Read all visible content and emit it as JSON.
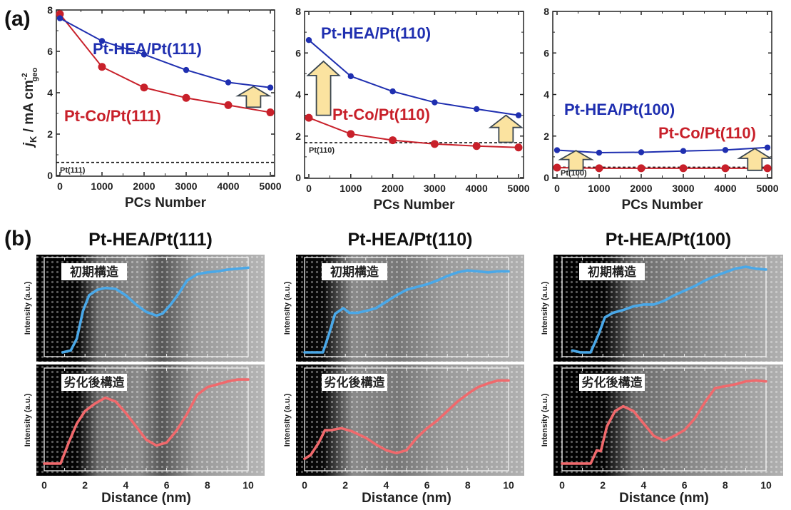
{
  "figure": {
    "panel_a_label": "(a)",
    "panel_b_label": "(b)"
  },
  "colors": {
    "hea": "#1f2fb0",
    "ptco": "#c8202a",
    "arrow_fill": "#fbe3a0",
    "arrow_stroke": "#3a4650",
    "profile_initial": "#4aa8e8",
    "profile_degraded": "#f0696c"
  },
  "chart_data": [
    {
      "type": "line",
      "panel": "a",
      "title": "",
      "xlabel": "PCs Number",
      "ylabel": "j_K / mA cm_geo^-2",
      "ylabel_parts": {
        "j": "j",
        "sub_k": "K",
        "rest": " / mA cm",
        "sup": "-2",
        "sub": "geo"
      },
      "xlim": [
        0,
        5000
      ],
      "ylim": [
        0,
        8
      ],
      "xticks": [
        "0",
        "1000",
        "2000",
        "3000",
        "4000",
        "5000"
      ],
      "yticks": [
        "0",
        "2",
        "4",
        "6",
        "8"
      ],
      "x": [
        0,
        1000,
        2000,
        3000,
        4000,
        5000
      ],
      "series": [
        {
          "name": "Pt-HEA/Pt(111)",
          "color_key": "hea",
          "values": [
            7.6,
            6.5,
            5.85,
            5.1,
            4.5,
            4.25
          ]
        },
        {
          "name": "Pt-Co/Pt(111)",
          "color_key": "ptco",
          "values": [
            7.8,
            5.25,
            4.25,
            3.75,
            3.4,
            3.05
          ]
        }
      ],
      "reference_line": {
        "label": "Pt(111)",
        "value": 0.63
      },
      "arrows": [
        {
          "x": 4600,
          "from": 3.3,
          "to": 4.3
        }
      ]
    },
    {
      "type": "line",
      "panel": "a",
      "title": "",
      "xlabel": "PCs Number",
      "ylabel": "",
      "xlim": [
        0,
        5000
      ],
      "ylim": [
        0,
        8
      ],
      "xticks": [
        "0",
        "1000",
        "2000",
        "3000",
        "4000",
        "5000"
      ],
      "yticks": [
        "0",
        "2",
        "4",
        "6",
        "8"
      ],
      "x": [
        0,
        1000,
        2000,
        3000,
        4000,
        5000
      ],
      "series": [
        {
          "name": "Pt-HEA/Pt(110)",
          "color_key": "hea",
          "values": [
            6.62,
            4.88,
            4.15,
            3.62,
            3.3,
            3.0
          ]
        },
        {
          "name": "Pt-Co/Pt(110)",
          "color_key": "ptco",
          "values": [
            2.88,
            2.1,
            1.8,
            1.62,
            1.52,
            1.45
          ]
        }
      ],
      "reference_line": {
        "label": "Pt(110)",
        "value": 1.68
      },
      "arrows": [
        {
          "x": 350,
          "from": 3.0,
          "to": 5.6
        },
        {
          "x": 4700,
          "from": 1.7,
          "to": 3.0
        }
      ]
    },
    {
      "type": "line",
      "panel": "a",
      "title": "",
      "xlabel": "PCs Number",
      "ylabel": "",
      "xlim": [
        0,
        5000
      ],
      "ylim": [
        0,
        8
      ],
      "xticks": [
        "0",
        "1000",
        "2000",
        "3000",
        "4000",
        "5000"
      ],
      "yticks": [
        "0",
        "2",
        "4",
        "6",
        "8"
      ],
      "x": [
        0,
        1000,
        2000,
        3000,
        4000,
        5000
      ],
      "series": [
        {
          "name": "Pt-HEA/Pt(100)",
          "color_key": "hea",
          "values": [
            1.32,
            1.2,
            1.22,
            1.28,
            1.33,
            1.45
          ]
        },
        {
          "name": "Pt-Co/Pt(110)",
          "color_key": "ptco",
          "values": [
            0.48,
            0.45,
            0.45,
            0.45,
            0.45,
            0.45
          ]
        }
      ],
      "reference_line": {
        "label": "Pt(100)",
        "value": 0.5
      },
      "arrows": [
        {
          "x": 450,
          "from": 0.35,
          "to": 1.3
        },
        {
          "x": 4700,
          "from": 0.35,
          "to": 1.4
        }
      ]
    },
    {
      "type": "line",
      "panel": "b",
      "title": "Pt-HEA/Pt(111)",
      "xlabel": "Distance (nm)",
      "ylabel": "Intensity (a.u.)",
      "xlim": [
        0,
        10
      ],
      "xticks": [
        "0",
        "2",
        "4",
        "6",
        "8",
        "10"
      ],
      "profiles": [
        {
          "name": "初期構造",
          "color_key": "profile_initial",
          "x": [
            0.9,
            1.3,
            1.6,
            1.9,
            2.2,
            2.6,
            3.0,
            3.5,
            4.0,
            4.5,
            5.0,
            5.5,
            5.8,
            6.2,
            6.6,
            7.0,
            7.5,
            8.0,
            8.5,
            9.0,
            9.5,
            10.0
          ],
          "y": [
            0.0,
            0.02,
            0.15,
            0.45,
            0.62,
            0.68,
            0.7,
            0.69,
            0.62,
            0.52,
            0.44,
            0.4,
            0.42,
            0.52,
            0.64,
            0.78,
            0.85,
            0.87,
            0.88,
            0.9,
            0.91,
            0.92
          ]
        },
        {
          "name": "劣化後構造",
          "color_key": "profile_degraded",
          "x": [
            0.0,
            0.8,
            1.2,
            1.6,
            2.0,
            2.5,
            3.0,
            3.5,
            4.0,
            4.5,
            5.0,
            5.5,
            6.0,
            6.5,
            7.0,
            7.5,
            8.0,
            8.5,
            9.0,
            9.5,
            10.0
          ],
          "y": [
            0.03,
            0.03,
            0.25,
            0.45,
            0.58,
            0.66,
            0.72,
            0.68,
            0.56,
            0.42,
            0.28,
            0.22,
            0.25,
            0.38,
            0.55,
            0.75,
            0.83,
            0.86,
            0.89,
            0.91,
            0.91
          ]
        }
      ]
    },
    {
      "type": "line",
      "panel": "b",
      "title": "Pt-HEA/Pt(110)",
      "xlabel": "Distance (nm)",
      "ylabel": "Intensity (a.u.)",
      "xlim": [
        0,
        10
      ],
      "xticks": [
        "0",
        "2",
        "4",
        "6",
        "8",
        "10"
      ],
      "profiles": [
        {
          "name": "初期構造",
          "color_key": "profile_initial",
          "x": [
            0.0,
            0.9,
            1.2,
            1.5,
            1.9,
            2.2,
            2.6,
            3.0,
            3.5,
            4.0,
            4.5,
            5.0,
            5.5,
            6.0,
            6.5,
            7.0,
            7.5,
            8.0,
            8.5,
            9.0,
            9.5,
            10.0
          ],
          "y": [
            0.0,
            0.0,
            0.2,
            0.42,
            0.48,
            0.43,
            0.43,
            0.45,
            0.48,
            0.55,
            0.62,
            0.68,
            0.71,
            0.74,
            0.78,
            0.83,
            0.87,
            0.89,
            0.88,
            0.87,
            0.88,
            0.88
          ]
        },
        {
          "name": "劣化後構造",
          "color_key": "profile_degraded",
          "x": [
            0.0,
            0.3,
            0.7,
            1.0,
            1.3,
            1.8,
            2.3,
            3.0,
            3.5,
            4.0,
            4.5,
            5.0,
            5.5,
            6.0,
            6.5,
            7.0,
            7.5,
            8.0,
            8.5,
            9.0,
            9.5,
            10.0
          ],
          "y": [
            0.08,
            0.12,
            0.25,
            0.38,
            0.38,
            0.4,
            0.37,
            0.3,
            0.23,
            0.17,
            0.14,
            0.17,
            0.3,
            0.4,
            0.48,
            0.58,
            0.68,
            0.76,
            0.83,
            0.87,
            0.9,
            0.9
          ]
        }
      ]
    },
    {
      "type": "line",
      "panel": "b",
      "title": "Pt-HEA/Pt(100)",
      "xlabel": "Distance (nm)",
      "ylabel": "Intensity (a.u.)",
      "xlim": [
        0,
        10
      ],
      "xticks": [
        "0",
        "2",
        "4",
        "6",
        "8",
        "10"
      ],
      "profiles": [
        {
          "name": "初期構造",
          "color_key": "profile_initial",
          "x": [
            0.5,
            0.9,
            1.4,
            1.8,
            2.1,
            2.5,
            3.0,
            3.5,
            4.0,
            4.5,
            5.0,
            5.5,
            6.0,
            6.5,
            7.0,
            7.5,
            8.0,
            8.5,
            9.0,
            9.5,
            10.0
          ],
          "y": [
            0.02,
            0.0,
            0.0,
            0.2,
            0.38,
            0.43,
            0.46,
            0.5,
            0.52,
            0.52,
            0.56,
            0.62,
            0.67,
            0.72,
            0.78,
            0.83,
            0.87,
            0.91,
            0.93,
            0.91,
            0.9
          ]
        },
        {
          "name": "劣化後構造",
          "color_key": "profile_degraded",
          "x": [
            0.0,
            1.0,
            1.4,
            1.7,
            1.9,
            2.2,
            2.6,
            3.0,
            3.5,
            4.0,
            4.5,
            5.0,
            5.5,
            6.0,
            6.5,
            7.0,
            7.5,
            8.0,
            8.5,
            9.0,
            9.5,
            10.0
          ],
          "y": [
            0.03,
            0.03,
            0.03,
            0.17,
            0.16,
            0.42,
            0.58,
            0.63,
            0.58,
            0.45,
            0.32,
            0.27,
            0.32,
            0.38,
            0.5,
            0.67,
            0.82,
            0.84,
            0.86,
            0.89,
            0.9,
            0.89
          ]
        }
      ]
    }
  ]
}
